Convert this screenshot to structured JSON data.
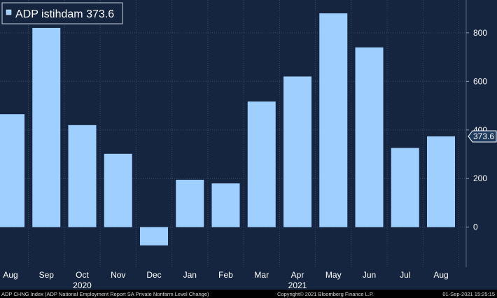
{
  "chart_data": {
    "type": "bar",
    "legend": {
      "label": "ADP istihdam 373.6",
      "position": "top-left"
    },
    "categories": [
      "Aug",
      "Sep",
      "Oct",
      "Nov",
      "Dec",
      "Jan",
      "Feb",
      "Mar",
      "Apr",
      "May",
      "Jun",
      "Jul",
      "Aug"
    ],
    "series": [
      {
        "name": "ADP istihdam",
        "values": [
          465,
          820,
          420,
          302,
          -75,
          195,
          180,
          517,
          620,
          880,
          740,
          326,
          373.6
        ]
      }
    ],
    "year_labels": [
      "2020",
      "2021"
    ],
    "yticks": [
      0,
      200,
      400,
      600,
      800
    ],
    "ylim": [
      -165,
      935
    ],
    "last_value_label": "373.6",
    "grid": true,
    "y_axis_side": "right",
    "colors": {
      "background": "#15253F",
      "bar": "#9ECFFF",
      "grid": "#3A4A66",
      "text": "#FFFFFF",
      "footer_text": "#D8D8D8",
      "tag_fill": "#1E3A5F",
      "tag_stroke": "#FFFFFF"
    }
  },
  "footer": {
    "left": "ADP CHNG Index (ADP National Employment Report SA Private Nonfarm Level Change)",
    "center": "Copyright© 2021 Bloomberg Finance L.P.",
    "right": "01-Sep-2021 15:25:15"
  }
}
